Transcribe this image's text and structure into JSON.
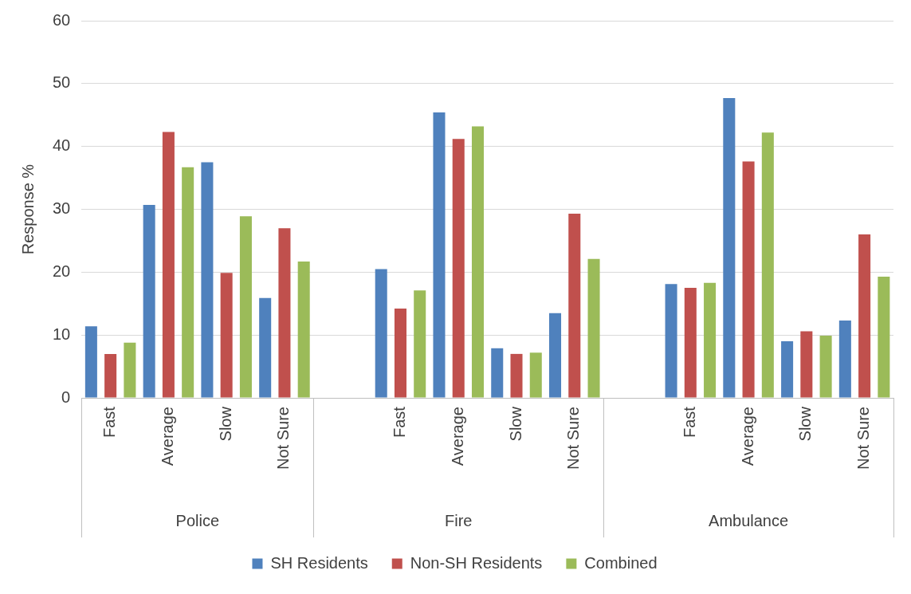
{
  "chart_data": {
    "type": "bar",
    "ylabel": "Response %",
    "categories": [
      "Fast",
      "Average",
      "Slow",
      "Not Sure",
      null,
      "Fast",
      "Average",
      "Slow",
      "Not Sure",
      null,
      "Fast",
      "Average",
      "Slow",
      "Not Sure"
    ],
    "series": [
      {
        "name": "SH Residents",
        "color": "#4f81bd",
        "values": [
          11.4,
          30.7,
          37.5,
          15.9,
          null,
          20.5,
          45.4,
          7.9,
          13.5,
          null,
          18.1,
          47.7,
          9.0,
          12.3
        ]
      },
      {
        "name": "Non-SH Residents",
        "color": "#c0504d",
        "values": [
          7.0,
          42.3,
          19.9,
          27.0,
          null,
          14.2,
          41.2,
          7.0,
          29.3,
          null,
          17.5,
          37.6,
          10.6,
          26.0
        ]
      },
      {
        "name": "Combined",
        "color": "#9bbb59",
        "values": [
          8.8,
          36.7,
          28.9,
          21.7,
          null,
          17.1,
          43.2,
          7.2,
          22.1,
          null,
          18.3,
          42.2,
          9.9,
          19.3
        ]
      }
    ],
    "annotations": [
      "Police",
      "Fire",
      "Ambulance"
    ],
    "ylim": [
      0,
      60
    ],
    "yticks": [
      0,
      10,
      20,
      30,
      40,
      50,
      60
    ],
    "grid": "y",
    "legend": "bottom"
  }
}
